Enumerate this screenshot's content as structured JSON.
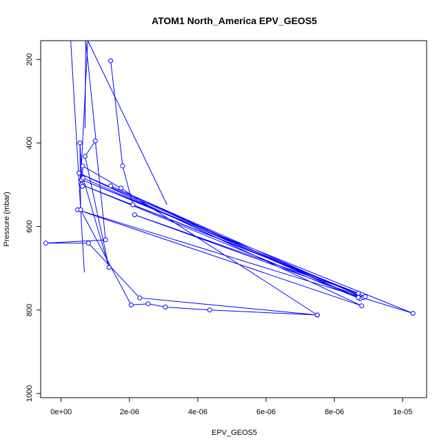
{
  "chart_data": {
    "type": "scatter",
    "title": "ATOM1 North_America EPV_GEOS5",
    "xlabel": "EPV_GEOS5",
    "ylabel": "Pressure (mbar)",
    "xlim": [
      -6e-07,
      1.07e-05
    ],
    "ylim": [
      1010,
      155
    ],
    "y_reversed": true,
    "x_ticks": [
      {
        "value": 0,
        "label": "0e+00"
      },
      {
        "value": 2e-06,
        "label": "2e-06"
      },
      {
        "value": 4e-06,
        "label": "4e-06"
      },
      {
        "value": 6e-06,
        "label": "6e-06"
      },
      {
        "value": 8e-06,
        "label": "8e-06"
      },
      {
        "value": 1e-05,
        "label": "1e-05"
      }
    ],
    "y_ticks": [
      {
        "value": 200,
        "label": "200"
      },
      {
        "value": 400,
        "label": "400"
      },
      {
        "value": 600,
        "label": "600"
      },
      {
        "value": 800,
        "label": "800"
      },
      {
        "value": 1000,
        "label": "1000"
      }
    ],
    "color": "#0000ff",
    "series": [
      {
        "line_only": true,
        "points": [
          [
            2.8e-07,
            155
          ],
          [
            6.8e-07,
            710
          ]
        ]
      },
      {
        "line_only": true,
        "points": [
          [
            7.8e-07,
            155
          ],
          [
            5.7e-07,
            490
          ]
        ]
      },
      {
        "line_only": true,
        "points": [
          [
            7.8e-07,
            155
          ],
          [
            3.1e-06,
            548
          ]
        ]
      },
      {
        "line_only": true,
        "points": [
          [
            7.2e-07,
            155
          ],
          [
            7e-07,
            365
          ]
        ]
      },
      {
        "line_only": true,
        "points": [
          [
            7.2e-07,
            155
          ],
          [
            1.02e-06,
            395
          ]
        ]
      },
      {
        "points": [
          [
            1.45e-06,
            203
          ],
          [
            1.8e-06,
            455
          ],
          [
            2.1e-06,
            548
          ],
          [
            8.7e-06,
            760
          ],
          [
            2.15e-06,
            572
          ],
          [
            8.85e-06,
            770
          ],
          [
            1.45e-06,
            503
          ],
          [
            8.75e-06,
            773
          ],
          [
            6e-07,
            500
          ],
          [
            8.9e-06,
            768
          ],
          [
            6e-07,
            488
          ],
          [
            1.03e-05,
            808
          ],
          [
            4.8e-07,
            560
          ],
          [
            8.8e-06,
            790
          ],
          [
            5.2e-07,
            472
          ],
          [
            8.7e-06,
            770
          ],
          [
            6.4e-07,
            484
          ],
          [
            1.4e-06,
            698
          ],
          [
            7e-07,
            432
          ],
          [
            1e-06,
            395
          ],
          [
            1.3e-06,
            632
          ],
          [
            -4.5e-07,
            640
          ],
          [
            8e-07,
            640
          ],
          [
            2.3e-06,
            771
          ],
          [
            7.5e-06,
            812
          ],
          [
            4.35e-06,
            800
          ],
          [
            3.05e-06,
            793
          ],
          [
            2.55e-06,
            785
          ],
          [
            2.05e-06,
            788
          ],
          [
            5.7e-07,
            560
          ],
          [
            5.5e-07,
            400
          ],
          [
            6.2e-07,
            504
          ],
          [
            6.3e-07,
            455
          ],
          [
            1.75e-06,
            508
          ],
          [
            7.5e-06,
            812
          ]
        ]
      }
    ]
  }
}
